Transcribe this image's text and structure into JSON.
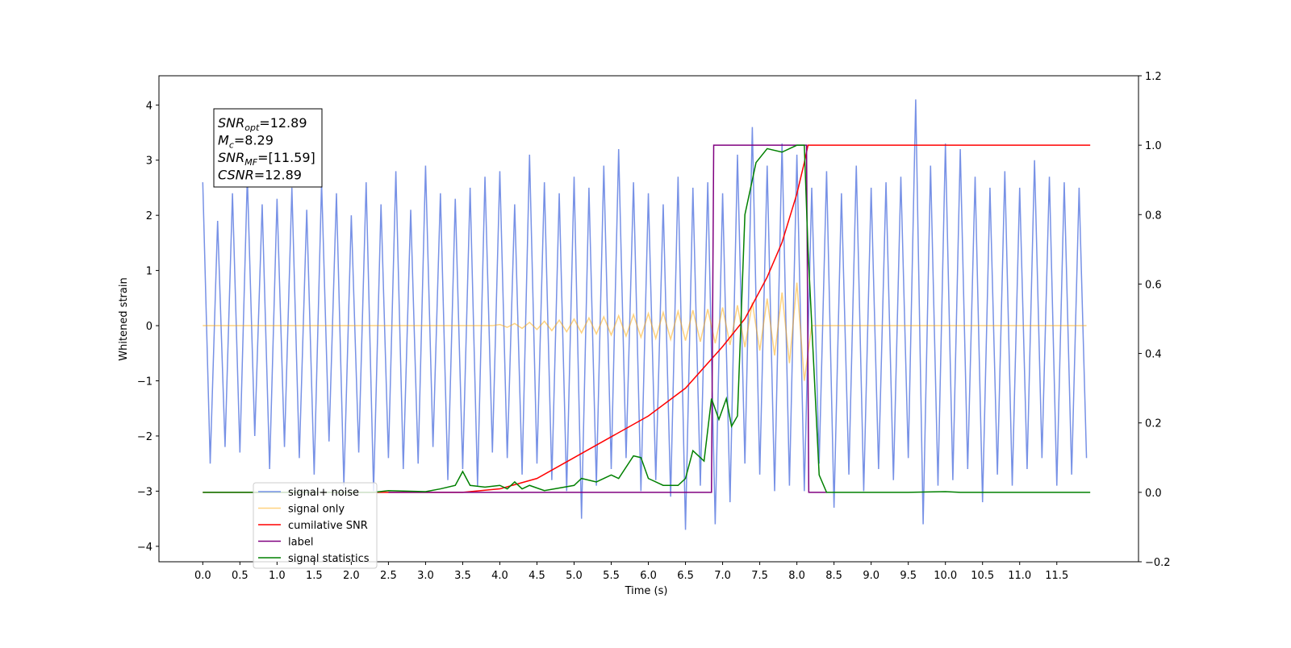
{
  "chart_data": {
    "type": "line",
    "xlabel": "Time (s)",
    "ylabel": "Whitened strain",
    "xlim": [
      -0.59,
      12.6
    ],
    "ylim": [
      -4.28,
      4.53
    ],
    "y2lim": [
      -0.2,
      1.2
    ],
    "xticks": [
      {
        "value": 0,
        "label": "0.0"
      },
      0.5,
      {
        "value": 1,
        "label": "1.0"
      },
      1.5,
      {
        "value": 2,
        "label": "2.0"
      },
      2.5,
      {
        "value": 3,
        "label": "3.0"
      },
      3.5,
      {
        "value": 4,
        "label": "4.0"
      },
      4.5,
      {
        "value": 5,
        "label": "5.0"
      },
      5.5,
      {
        "value": 6,
        "label": "6.0"
      },
      6.5,
      {
        "value": 7,
        "label": "7.0"
      },
      7.5,
      {
        "value": 8,
        "label": "8.0"
      },
      8.5,
      {
        "value": 9,
        "label": "9.0"
      },
      9.5,
      {
        "value": 10,
        "label": "10.0"
      },
      10.5,
      {
        "value": 11,
        "label": "11.0"
      },
      11.5
    ],
    "yticks": [
      {
        "value": -4,
        "label": "−4"
      },
      {
        "value": -3,
        "label": "−3"
      },
      {
        "value": -2,
        "label": "−2"
      },
      {
        "value": -1,
        "label": "−1"
      },
      0,
      1,
      2,
      3,
      4
    ],
    "y2ticks": [
      {
        "value": -0.2,
        "label": "−0.2"
      },
      {
        "value": 0,
        "label": "0.0"
      },
      0.2,
      0.4,
      0.6,
      0.8,
      {
        "value": 1,
        "label": "1.0"
      },
      1.2
    ],
    "annotations": [
      {
        "symbol": "SNR",
        "sub": "opt",
        "text": "=12.89"
      },
      {
        "symbol": "M",
        "sub": "c",
        "text": "=8.29"
      },
      {
        "symbol": "SNR",
        "sub": "MF",
        "text": "=[11.59]"
      },
      {
        "symbol": "CSNR",
        "text": "=12.89"
      }
    ],
    "legend": "lower-left",
    "x": [
      0,
      0.1,
      0.2,
      0.3,
      0.4,
      0.5,
      0.6,
      0.7,
      0.8,
      0.9,
      1,
      1.1,
      1.2,
      1.3,
      1.4,
      1.5,
      1.6,
      1.7,
      1.8,
      1.9,
      2,
      2.1,
      2.2,
      2.3,
      2.4,
      2.5,
      2.6,
      2.7,
      2.8,
      2.9,
      3,
      3.1,
      3.2,
      3.3,
      3.4,
      3.5,
      3.6,
      3.7,
      3.8,
      3.9,
      4,
      4.1,
      4.2,
      4.3,
      4.4,
      4.5,
      4.6,
      4.7,
      4.8,
      4.9,
      5,
      5.1,
      5.2,
      5.3,
      5.4,
      5.5,
      5.6,
      5.7,
      5.8,
      5.9,
      6,
      6.1,
      6.2,
      6.3,
      6.4,
      6.5,
      6.6,
      6.7,
      6.8,
      6.9,
      7,
      7.1,
      7.2,
      7.3,
      7.4,
      7.5,
      7.6,
      7.7,
      7.8,
      7.9,
      8,
      8.1,
      8.2,
      8.3,
      8.4,
      8.5,
      8.6,
      8.7,
      8.8,
      8.9,
      9,
      9.1,
      9.2,
      9.3,
      9.4,
      9.5,
      9.6,
      9.7,
      9.8,
      9.9,
      10,
      10.1,
      10.2,
      10.3,
      10.4,
      10.5,
      10.6,
      10.7,
      10.8,
      10.9,
      11,
      11.1,
      11.2,
      11.3,
      11.4,
      11.5,
      11.6,
      11.7,
      11.8,
      11.9
    ],
    "series": [
      {
        "name": "signal+ noise",
        "color": "#7791e6",
        "values": [
          2.6,
          -2.5,
          1.9,
          -2.2,
          2.4,
          -2.3,
          2.7,
          -2.0,
          2.2,
          -2.6,
          2.3,
          -2.2,
          2.5,
          -2.4,
          2.1,
          -2.7,
          2.6,
          -2.1,
          2.4,
          -2.9,
          2.0,
          -2.3,
          2.6,
          -3.0,
          2.2,
          -2.4,
          2.8,
          -2.6,
          2.1,
          -2.5,
          2.9,
          -2.2,
          2.4,
          -2.8,
          2.3,
          -2.6,
          2.5,
          -2.9,
          2.7,
          -2.3,
          2.8,
          -2.4,
          2.2,
          -2.7,
          3.1,
          -2.5,
          2.6,
          -2.8,
          2.4,
          -3.0,
          2.7,
          -3.5,
          2.5,
          -2.9,
          2.9,
          -2.6,
          3.2,
          -2.4,
          2.6,
          -3.0,
          2.4,
          -2.8,
          2.2,
          -3.1,
          2.7,
          -3.7,
          2.5,
          -2.9,
          2.6,
          -3.6,
          2.4,
          -3.2,
          3.1,
          -2.5,
          3.6,
          -2.7,
          2.9,
          -3.0,
          3.3,
          -2.9,
          3.1,
          -3.0,
          2.5,
          -2.5,
          2.8,
          -3.3,
          2.4,
          -2.7,
          2.9,
          -3.0,
          2.5,
          -2.6,
          2.6,
          -2.8,
          2.7,
          -2.4,
          4.1,
          -3.6,
          2.9,
          -2.9,
          3.3,
          -2.8,
          3.2,
          -2.6,
          2.7,
          -3.2,
          2.5,
          -2.7,
          2.8,
          -2.9,
          2.5,
          -2.6,
          3.0,
          -2.4,
          2.7,
          -2.9,
          2.6,
          -2.7,
          2.5,
          -2.4
        ]
      },
      {
        "name": "signal only",
        "color": "#ffa500",
        "values": [
          0,
          0,
          0,
          0,
          0,
          0,
          0,
          0,
          0,
          0,
          0,
          0,
          0,
          0,
          0,
          0,
          0,
          0,
          0,
          0,
          0,
          0,
          0,
          0,
          0,
          0,
          0,
          0,
          0,
          0,
          0,
          0,
          0,
          0,
          0,
          0,
          0,
          0,
          0,
          0,
          0.02,
          -0.03,
          0.04,
          -0.05,
          0.06,
          -0.07,
          0.08,
          -0.09,
          0.1,
          -0.11,
          0.12,
          -0.13,
          0.14,
          -0.15,
          0.16,
          -0.17,
          0.18,
          -0.19,
          0.2,
          -0.21,
          0.22,
          -0.23,
          0.24,
          -0.25,
          0.26,
          -0.27,
          0.28,
          -0.29,
          0.3,
          -0.32,
          0.33,
          -0.35,
          0.37,
          -0.39,
          0.42,
          -0.45,
          0.49,
          -0.54,
          0.6,
          -0.68,
          0.78,
          -1.0,
          0,
          0,
          0,
          0,
          0,
          0,
          0,
          0,
          0,
          0,
          0,
          0,
          0,
          0,
          0,
          0,
          0,
          0,
          0,
          0,
          0,
          0,
          0,
          0,
          0,
          0,
          0,
          0,
          0,
          0,
          0,
          0,
          0,
          0,
          0,
          0,
          0,
          0
        ]
      },
      {
        "name": "cumilative SNR",
        "color": "#ff0000",
        "axis": "y2",
        "x": [
          0,
          3.5,
          4.0,
          4.5,
          5.0,
          5.5,
          6.0,
          6.5,
          7.0,
          7.3,
          7.6,
          7.8,
          8.0,
          8.1,
          8.15,
          8.16,
          11.95
        ],
        "values": [
          0,
          0,
          0.01,
          0.04,
          0.1,
          0.16,
          0.22,
          0.3,
          0.42,
          0.5,
          0.62,
          0.72,
          0.86,
          0.95,
          1,
          1,
          1
        ]
      },
      {
        "name": "label",
        "color": "#800080",
        "axis": "y2",
        "x": [
          2.5,
          6.85,
          6.88,
          8.13,
          8.16,
          8.4
        ],
        "values": [
          0,
          0,
          1,
          1,
          0,
          0
        ]
      },
      {
        "name": "signal statistics",
        "color": "#008000",
        "axis": "y2",
        "x": [
          0,
          2.3,
          2.5,
          2.8,
          3.0,
          3.2,
          3.4,
          3.5,
          3.6,
          3.8,
          4.0,
          4.1,
          4.2,
          4.3,
          4.4,
          4.6,
          5.0,
          5.1,
          5.3,
          5.5,
          5.6,
          5.8,
          5.9,
          6.0,
          6.2,
          6.4,
          6.5,
          6.6,
          6.75,
          6.85,
          6.95,
          7.05,
          7.12,
          7.2,
          7.3,
          7.45,
          7.6,
          7.8,
          8.0,
          8.1,
          8.15,
          8.3,
          8.4,
          9.5,
          10.0,
          10.2,
          11.95
        ],
        "values": [
          0,
          0,
          0.005,
          0.003,
          0.002,
          0.01,
          0.02,
          0.06,
          0.02,
          0.015,
          0.02,
          0.01,
          0.03,
          0.01,
          0.02,
          0.005,
          0.02,
          0.04,
          0.03,
          0.05,
          0.04,
          0.105,
          0.1,
          0.04,
          0.02,
          0.02,
          0.04,
          0.12,
          0.09,
          0.27,
          0.21,
          0.27,
          0.19,
          0.22,
          0.8,
          0.95,
          0.99,
          0.98,
          1.0,
          1.0,
          0.7,
          0.05,
          0,
          0,
          0.002,
          0,
          0
        ]
      }
    ]
  }
}
